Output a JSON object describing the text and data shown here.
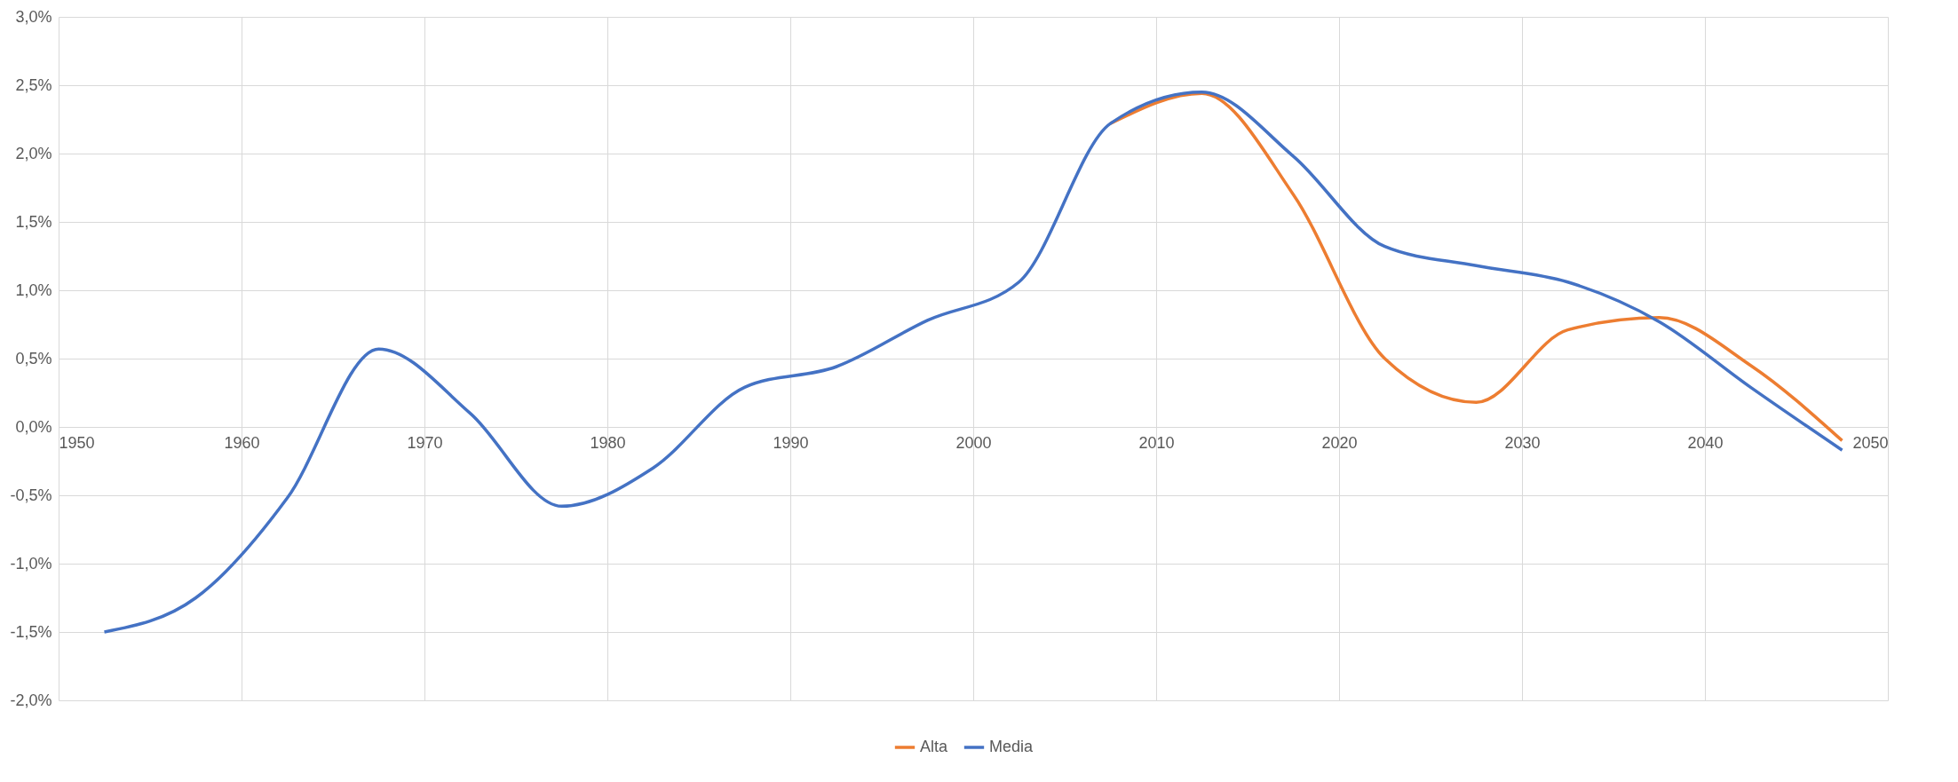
{
  "chart_data": {
    "type": "line",
    "x": [
      1952.5,
      1957.5,
      1962.5,
      1967.5,
      1972.5,
      1977.5,
      1982.5,
      1987.5,
      1992.5,
      1997.5,
      2002.5,
      2007.5,
      2012.5,
      2017.5,
      2022.5,
      2027.5,
      2032.5,
      2037.5,
      2042.5,
      2047.5
    ],
    "series": [
      {
        "name": "Alta",
        "color": "#ed7d31",
        "values": [
          null,
          null,
          null,
          null,
          null,
          null,
          null,
          null,
          null,
          null,
          null,
          2.22,
          2.44,
          1.7,
          0.5,
          0.18,
          0.71,
          0.8,
          0.45,
          -0.1
        ]
      },
      {
        "name": "Media",
        "color": "#4472c4",
        "values": [
          -1.5,
          -1.25,
          -0.52,
          0.57,
          0.1,
          -0.58,
          -0.3,
          0.29,
          0.44,
          0.78,
          1.06,
          2.22,
          2.45,
          1.98,
          1.32,
          1.18,
          1.06,
          0.77,
          0.29,
          -0.17
        ]
      }
    ],
    "xlim": [
      1950,
      2050
    ],
    "xticks": [
      1950,
      1960,
      1970,
      1980,
      1990,
      2000,
      2010,
      2020,
      2030,
      2040,
      2050
    ],
    "ylim": [
      -2,
      3
    ],
    "yticks": [
      {
        "value": -2,
        "label": "-2,0%"
      },
      {
        "value": -1.5,
        "label": "-1,5%"
      },
      {
        "value": -1,
        "label": "-1,0%"
      },
      {
        "value": -0.5,
        "label": "-0,5%"
      },
      {
        "value": 0,
        "label": "0,0%"
      },
      {
        "value": 0.5,
        "label": "0,5%"
      },
      {
        "value": 1,
        "label": "1,0%"
      },
      {
        "value": 1.5,
        "label": "1,5%"
      },
      {
        "value": 2,
        "label": "2,0%"
      },
      {
        "value": 2.5,
        "label": "2,5%"
      },
      {
        "value": 3,
        "label": "3,0%"
      }
    ],
    "grid": true,
    "legend": "bottom",
    "marker": "none",
    "line_style": "solid"
  }
}
